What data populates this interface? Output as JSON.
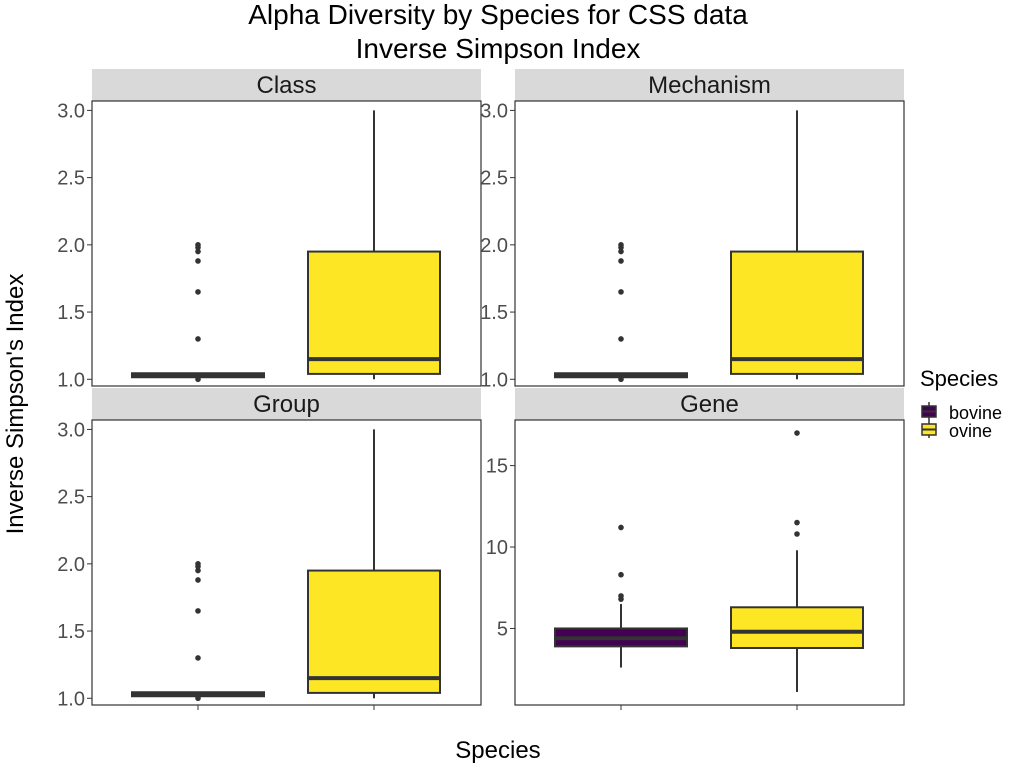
{
  "chart_data": {
    "type": "boxplot",
    "title": "Alpha Diversity by Species for CSS data",
    "subtitle": "Inverse Simpson Index",
    "xlabel": "Species",
    "ylabel": "Inverse Simpson's Index",
    "legend": {
      "title": "Species",
      "position": "right",
      "entries": [
        {
          "name": "bovine",
          "color": "#440154"
        },
        {
          "name": "ovine",
          "color": "#FDE725"
        }
      ]
    },
    "colors": {
      "box_outline": "#333333",
      "strip_fill": "#d9d9d9",
      "panel_border": "#333333",
      "tick_text": "#4d4d4d"
    },
    "panels": [
      {
        "name": "Class",
        "ylim": [
          0.95,
          3.07
        ],
        "yticks": [
          1.0,
          1.5,
          2.0,
          2.5,
          3.0
        ],
        "ytick_labels": [
          "1.0",
          "1.5",
          "2.0",
          "2.5",
          "3.0"
        ],
        "boxes": [
          {
            "group": "bovine",
            "min": 1.02,
            "q1": 1.03,
            "median": 1.03,
            "q3": 1.03,
            "max": 1.04,
            "outliers": [
              1.0,
              1.3,
              1.65,
              1.88,
              1.95,
              1.98,
              2.0
            ]
          },
          {
            "group": "ovine",
            "min": 1.0,
            "q1": 1.04,
            "median": 1.15,
            "q3": 1.95,
            "max": 3.0,
            "outliers": []
          }
        ]
      },
      {
        "name": "Mechanism",
        "ylim": [
          0.95,
          3.07
        ],
        "yticks": [
          1.0,
          1.5,
          2.0,
          2.5,
          3.0
        ],
        "ytick_labels": [
          "1.0",
          "1.5",
          "2.0",
          "2.5",
          "3.0"
        ],
        "boxes": [
          {
            "group": "bovine",
            "min": 1.02,
            "q1": 1.03,
            "median": 1.03,
            "q3": 1.03,
            "max": 1.04,
            "outliers": [
              1.0,
              1.3,
              1.65,
              1.88,
              1.95,
              1.98,
              2.0
            ]
          },
          {
            "group": "ovine",
            "min": 1.0,
            "q1": 1.04,
            "median": 1.15,
            "q3": 1.95,
            "max": 3.0,
            "outliers": []
          }
        ]
      },
      {
        "name": "Group",
        "ylim": [
          0.95,
          3.07
        ],
        "yticks": [
          1.0,
          1.5,
          2.0,
          2.5,
          3.0
        ],
        "ytick_labels": [
          "1.0",
          "1.5",
          "2.0",
          "2.5",
          "3.0"
        ],
        "boxes": [
          {
            "group": "bovine",
            "min": 1.02,
            "q1": 1.03,
            "median": 1.03,
            "q3": 1.03,
            "max": 1.04,
            "outliers": [
              1.0,
              1.3,
              1.65,
              1.88,
              1.95,
              1.98,
              2.0
            ]
          },
          {
            "group": "ovine",
            "min": 1.0,
            "q1": 1.04,
            "median": 1.15,
            "q3": 1.95,
            "max": 3.0,
            "outliers": []
          }
        ]
      },
      {
        "name": "Gene",
        "ylim": [
          0.3,
          17.8
        ],
        "yticks": [
          5,
          10,
          15
        ],
        "ytick_labels": [
          "5",
          "10",
          "15"
        ],
        "boxes": [
          {
            "group": "bovine",
            "min": 2.6,
            "q1": 3.9,
            "median": 4.4,
            "q3": 5.0,
            "max": 6.5,
            "outliers": [
              6.8,
              7.0,
              8.3,
              11.2
            ]
          },
          {
            "group": "ovine",
            "min": 1.1,
            "q1": 3.8,
            "median": 4.8,
            "q3": 6.3,
            "max": 9.8,
            "outliers": [
              10.8,
              11.5,
              17.0
            ]
          }
        ]
      }
    ]
  }
}
